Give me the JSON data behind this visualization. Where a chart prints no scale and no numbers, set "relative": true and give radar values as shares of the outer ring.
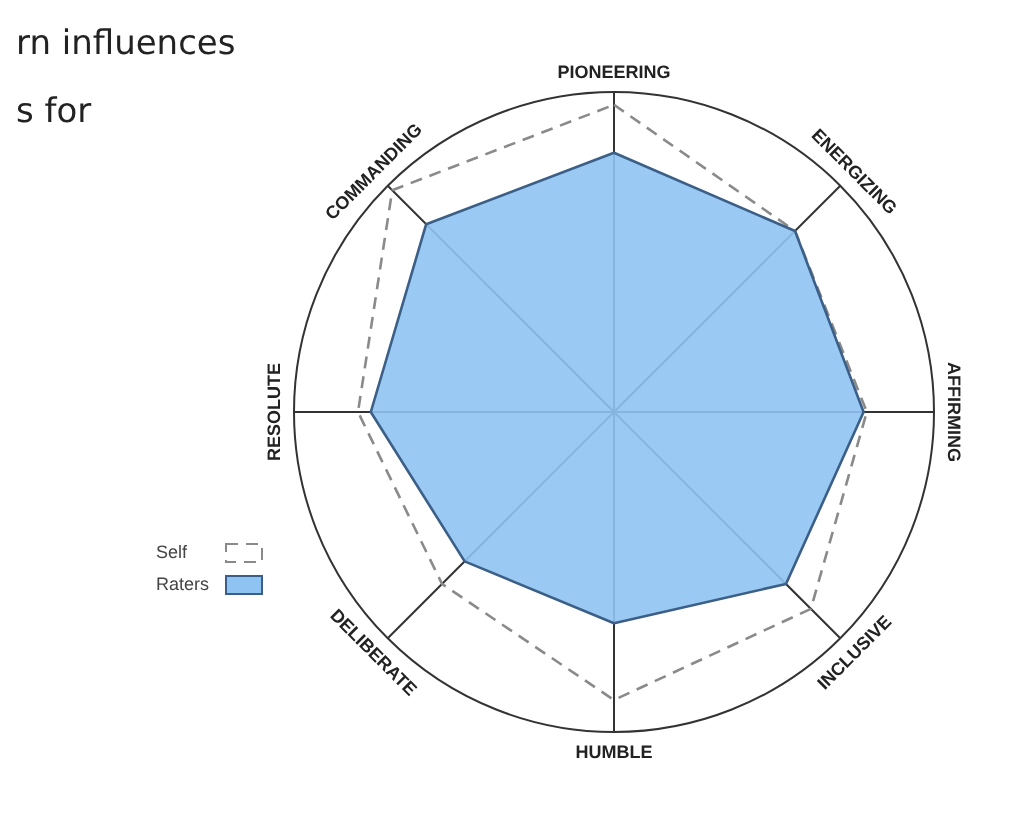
{
  "chart_data": {
    "type": "radar",
    "relative": true,
    "grid": true,
    "legend": "bottom left",
    "annotations": [
      "rn influences",
      "s for"
    ],
    "categories": [
      "PIONEERING",
      "ENERGIZING",
      "AFFIRMING",
      "INCLUSIVE",
      "HUMBLE",
      "DELIBERATE",
      "RESOLUTE",
      "COMMANDING"
    ],
    "series": [
      {
        "name": "Self",
        "color": "#8a8a8a",
        "line_style": "dashed",
        "values": [
          0.96,
          0.8,
          0.79,
          0.87,
          0.9,
          0.76,
          0.8,
          0.98
        ]
      },
      {
        "name": "Raters",
        "color": "#8fc4f2",
        "values": [
          0.81,
          0.8,
          0.78,
          0.76,
          0.66,
          0.66,
          0.76,
          0.83
        ]
      }
    ]
  }
}
